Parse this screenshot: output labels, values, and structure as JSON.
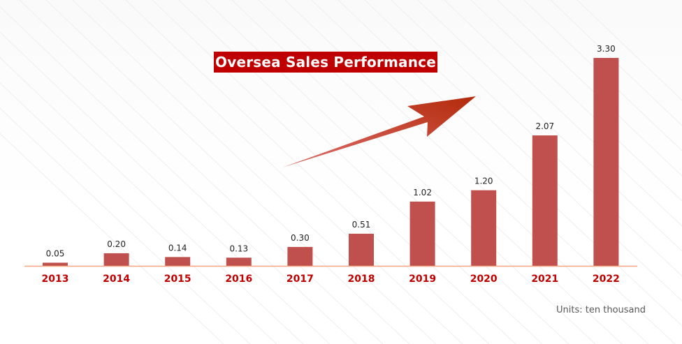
{
  "chart_data": {
    "type": "bar",
    "title": "Oversea Sales Performance",
    "units_note": "Units: ten thousand",
    "categories": [
      "2013",
      "2014",
      "2015",
      "2016",
      "2017",
      "2018",
      "2019",
      "2020",
      "2021",
      "2022"
    ],
    "values": [
      0.05,
      0.2,
      0.14,
      0.13,
      0.3,
      0.51,
      1.02,
      1.2,
      2.07,
      3.3
    ],
    "value_labels": [
      "0.05",
      "0.20",
      "0.14",
      "0.13",
      "0.30",
      "0.51",
      "1.02",
      "1.20",
      "2.07",
      "3.30"
    ],
    "xlabel": "",
    "ylabel": "",
    "ylim": [
      0,
      3.5
    ],
    "grid": false,
    "legend": "none",
    "colors": {
      "bar": "#c0504d",
      "axis": "#f4a582",
      "category_text": "#c00000",
      "title_bg": "#c00000",
      "arrow": "#c0280c"
    }
  }
}
